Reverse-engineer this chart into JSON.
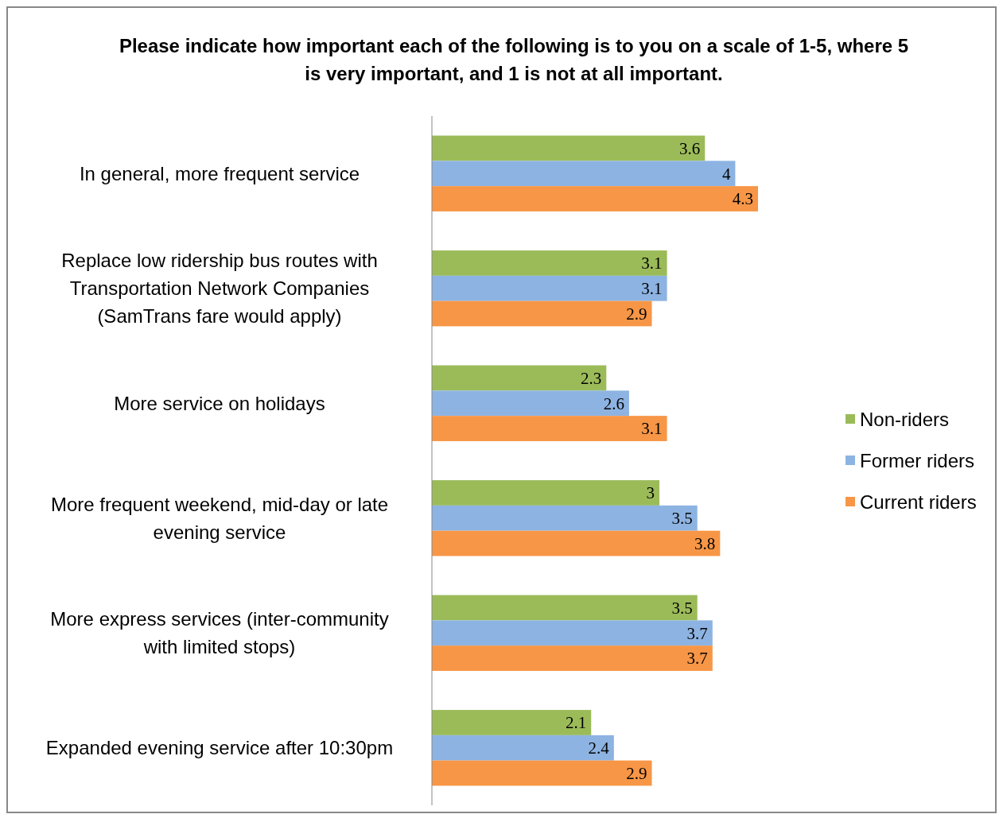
{
  "chart_data": {
    "type": "bar",
    "orientation": "horizontal",
    "title": "Please indicate how important each of the following  is to you on a scale of 1-5, where 5 is very important, and 1 is not at all important.",
    "categories": [
      "In general, more frequent service",
      "Replace low ridership bus routes with Transportation Network Companies (SamTrans fare would apply)",
      "More service on holidays",
      "More frequent weekend, mid-day or late evening service",
      "More express services (inter-community with limited stops)",
      "Expanded evening service after 10:30pm"
    ],
    "series": [
      {
        "name": "Non-riders",
        "color": "#9bbb59",
        "values": [
          3.6,
          3.1,
          2.3,
          3,
          3.5,
          2.1
        ]
      },
      {
        "name": "Former riders",
        "color": "#8db3e2",
        "values": [
          4,
          3.1,
          2.6,
          3.5,
          3.7,
          2.4
        ]
      },
      {
        "name": "Current riders",
        "color": "#f79646",
        "values": [
          4.3,
          2.9,
          3.1,
          3.8,
          3.7,
          2.9
        ]
      }
    ],
    "data_labels": true,
    "legend": "right"
  }
}
